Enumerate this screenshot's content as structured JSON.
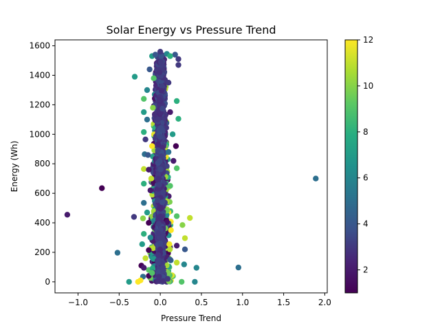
{
  "chart_data": {
    "type": "scatter",
    "title": "Solar Energy vs Pressure Trend",
    "xlabel": "Pressure Trend",
    "ylabel": "Energy (Wh)",
    "xlim": [
      -1.28,
      2.03
    ],
    "ylim": [
      -75,
      1640
    ],
    "x_ticks": [
      -1.0,
      -0.5,
      0.0,
      0.5,
      1.0,
      1.5,
      2.0
    ],
    "x_tick_labels": [
      "−1.0",
      "−0.5",
      "0.0",
      "0.5",
      "1.0",
      "1.5",
      "2.0"
    ],
    "y_ticks": [
      0,
      200,
      400,
      600,
      800,
      1000,
      1200,
      1400,
      1600
    ],
    "y_tick_labels": [
      "0",
      "200",
      "400",
      "600",
      "800",
      "1000",
      "1200",
      "1400",
      "1600"
    ],
    "colorbar": {
      "colormap": "viridis",
      "range": [
        1,
        12
      ],
      "ticks": [
        2,
        4,
        6,
        8,
        10,
        12
      ],
      "tick_labels": [
        "2",
        "4",
        "6",
        "8",
        "10",
        "12"
      ]
    },
    "grid": false,
    "points": [
      {
        "x": -1.13,
        "y": 455,
        "c": 2
      },
      {
        "x": -0.71,
        "y": 635,
        "c": 1
      },
      {
        "x": -0.52,
        "y": 197,
        "c": 5
      },
      {
        "x": -0.32,
        "y": 440,
        "c": 3
      },
      {
        "x": -0.31,
        "y": 1390,
        "c": 7
      },
      {
        "x": 1.89,
        "y": 700,
        "c": 5
      },
      {
        "x": 0.95,
        "y": 97,
        "c": 5
      },
      {
        "x": 0.44,
        "y": 95,
        "c": 6
      },
      {
        "x": 0.42,
        "y": 0,
        "c": 6
      },
      {
        "x": 0.36,
        "y": 433,
        "c": 11
      },
      {
        "x": 0.3,
        "y": 296,
        "c": 11
      },
      {
        "x": 0.3,
        "y": 220,
        "c": 4
      },
      {
        "x": 0.29,
        "y": 118,
        "c": 6
      },
      {
        "x": 0.27,
        "y": 385,
        "c": 10
      },
      {
        "x": 0.26,
        "y": 0,
        "c": 9
      },
      {
        "x": 0.22,
        "y": 1510,
        "c": 3
      },
      {
        "x": 0.22,
        "y": 1470,
        "c": 3
      },
      {
        "x": 0.22,
        "y": 1105,
        "c": 8
      },
      {
        "x": 0.2,
        "y": 1225,
        "c": 8
      },
      {
        "x": 0.2,
        "y": 770,
        "c": 9
      },
      {
        "x": 0.2,
        "y": 445,
        "c": 9
      },
      {
        "x": 0.2,
        "y": 245,
        "c": 2
      },
      {
        "x": 0.2,
        "y": 130,
        "c": 11
      },
      {
        "x": 0.19,
        "y": 920,
        "c": 1
      },
      {
        "x": 0.18,
        "y": 1540,
        "c": 4
      },
      {
        "x": 0.16,
        "y": 820,
        "c": 2
      },
      {
        "x": 0.15,
        "y": 1000,
        "c": 7
      },
      {
        "x": -0.13,
        "y": 1440,
        "c": 4
      },
      {
        "x": -0.16,
        "y": 1300,
        "c": 6
      },
      {
        "x": -0.2,
        "y": 1240,
        "c": 9
      },
      {
        "x": -0.2,
        "y": 1150,
        "c": 7
      },
      {
        "x": -0.16,
        "y": 1100,
        "c": 5
      },
      {
        "x": -0.2,
        "y": 1015,
        "c": 8
      },
      {
        "x": -0.18,
        "y": 965,
        "c": 3
      },
      {
        "x": -0.19,
        "y": 865,
        "c": 5
      },
      {
        "x": -0.15,
        "y": 860,
        "c": 4
      },
      {
        "x": -0.2,
        "y": 765,
        "c": 11
      },
      {
        "x": -0.14,
        "y": 760,
        "c": 2
      },
      {
        "x": -0.2,
        "y": 665,
        "c": 8
      },
      {
        "x": -0.12,
        "y": 620,
        "c": 2
      },
      {
        "x": -0.2,
        "y": 535,
        "c": 5
      },
      {
        "x": -0.16,
        "y": 470,
        "c": 7
      },
      {
        "x": -0.21,
        "y": 430,
        "c": 10
      },
      {
        "x": -0.14,
        "y": 400,
        "c": 1
      },
      {
        "x": -0.2,
        "y": 325,
        "c": 8
      },
      {
        "x": -0.22,
        "y": 255,
        "c": 7
      },
      {
        "x": -0.14,
        "y": 215,
        "c": 1
      },
      {
        "x": -0.18,
        "y": 160,
        "c": 11
      },
      {
        "x": -0.23,
        "y": 110,
        "c": 1
      },
      {
        "x": -0.2,
        "y": 95,
        "c": 2
      },
      {
        "x": -0.21,
        "y": 35,
        "c": 5
      },
      {
        "x": -0.27,
        "y": 0,
        "c": 12
      },
      {
        "x": -0.38,
        "y": 0,
        "c": 7
      },
      {
        "x": -0.24,
        "y": 10,
        "c": 12
      },
      {
        "x": -0.1,
        "y": 1530,
        "c": 7
      },
      {
        "x": -0.06,
        "y": 1540,
        "c": 4
      },
      {
        "x": 0.0,
        "y": 1560,
        "c": 3
      },
      {
        "x": 0.08,
        "y": 1545,
        "c": 6
      },
      {
        "x": 0.12,
        "y": 1530,
        "c": 8
      },
      {
        "x": -0.08,
        "y": 1380,
        "c": 9
      },
      {
        "x": 0.1,
        "y": 1350,
        "c": 3
      },
      {
        "x": -0.09,
        "y": 1180,
        "c": 10
      },
      {
        "x": 0.12,
        "y": 1150,
        "c": 2
      },
      {
        "x": -0.1,
        "y": 920,
        "c": 12
      },
      {
        "x": 0.1,
        "y": 880,
        "c": 5
      },
      {
        "x": -0.11,
        "y": 700,
        "c": 11
      },
      {
        "x": 0.12,
        "y": 650,
        "c": 9
      },
      {
        "x": -0.12,
        "y": 300,
        "c": 6
      },
      {
        "x": 0.13,
        "y": 350,
        "c": 12
      },
      {
        "x": 0.12,
        "y": 150,
        "c": 4
      },
      {
        "x": -0.1,
        "y": 60,
        "c": 9
      },
      {
        "x": 0.09,
        "y": 20,
        "c": 3
      }
    ]
  }
}
